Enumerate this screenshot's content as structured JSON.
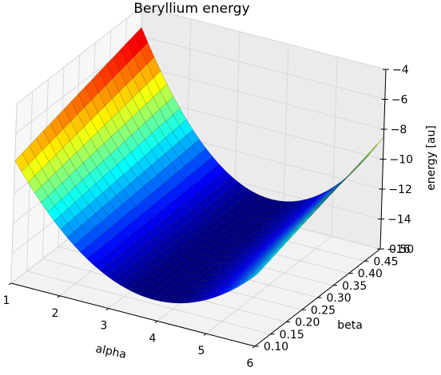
{
  "chart_data": {
    "type": "surface",
    "title": "Beryllium energy",
    "xlabel": "alpha",
    "ylabel": "beta",
    "zlabel": "energy [au]",
    "xlim": [
      1,
      6
    ],
    "ylim": [
      0.1,
      0.5
    ],
    "zlim": [
      -16,
      -4
    ],
    "x_ticks": [
      "1",
      "2",
      "3",
      "4",
      "5",
      "6"
    ],
    "y_ticks": [
      "0.10",
      "0.15",
      "0.20",
      "0.25",
      "0.30",
      "0.35",
      "0.40",
      "0.45",
      "0.50"
    ],
    "z_ticks": [
      "−16",
      "−14",
      "−12",
      "−10",
      "−8",
      "−6",
      "−4"
    ],
    "grid": true,
    "colormap": "jet",
    "surface_samples": [
      {
        "alpha": 1.0,
        "beta": 0.1,
        "energy": -7.8
      },
      {
        "alpha": 1.0,
        "beta": 0.5,
        "energy": -5.4
      },
      {
        "alpha": 2.0,
        "beta": 0.3,
        "energy": -11.0
      },
      {
        "alpha": 3.0,
        "beta": 0.3,
        "energy": -14.2
      },
      {
        "alpha": 3.5,
        "beta": 0.1,
        "energy": -14.5
      },
      {
        "alpha": 4.0,
        "beta": 0.3,
        "energy": -14.4
      },
      {
        "alpha": 5.0,
        "beta": 0.3,
        "energy": -12.8
      },
      {
        "alpha": 6.0,
        "beta": 0.1,
        "energy": -11.2
      },
      {
        "alpha": 6.0,
        "beta": 0.5,
        "energy": -8.5
      }
    ]
  }
}
